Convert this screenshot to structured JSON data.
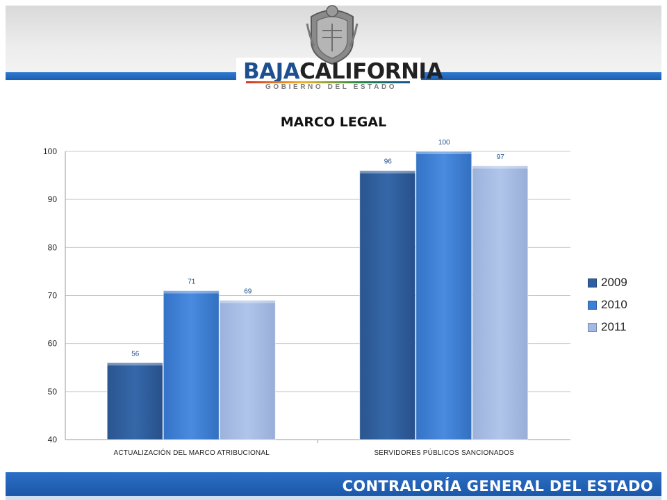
{
  "header": {
    "brand_part1": "BAJA",
    "brand_part2": "CALIFORNIA",
    "tagline": "GOBIERNO DEL ESTADO"
  },
  "footer": {
    "title": "CONTRALORÍA GENERAL DEL ESTADO"
  },
  "colors": {
    "series_2009": "#2f5fa0",
    "series_2010": "#3c7fd6",
    "series_2011": "#a3b9e3",
    "axis_text": "#222222",
    "data_label": "#1f4f8f"
  },
  "chart_data": {
    "type": "bar",
    "title": "MARCO LEGAL",
    "categories": [
      "ACTUALIZACIÓN DEL MARCO ATRIBUCIONAL",
      "SERVIDORES PÚBLICOS SANCIONADOS"
    ],
    "series": [
      {
        "name": "2009",
        "values": [
          56,
          96
        ]
      },
      {
        "name": "2010",
        "values": [
          71,
          100
        ]
      },
      {
        "name": "2011",
        "values": [
          69,
          97
        ]
      }
    ],
    "ylim": [
      40,
      100
    ],
    "yticks": [
      40,
      50,
      60,
      70,
      80,
      90,
      100
    ],
    "grid": true,
    "legend": "right",
    "data_labels": true
  }
}
